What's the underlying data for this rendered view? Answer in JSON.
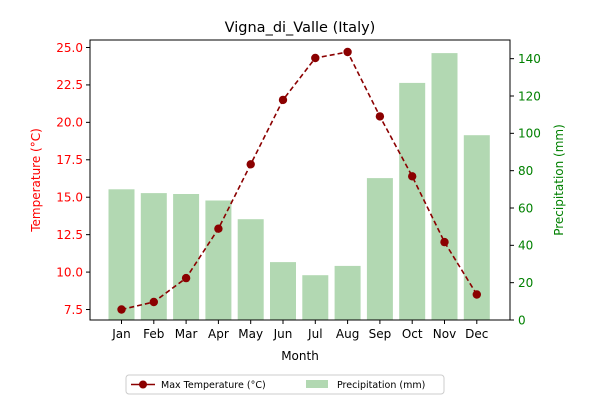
{
  "chart_data": {
    "type": "bar+line",
    "title": "Vigna_di_Valle (Italy)",
    "xlabel": "Month",
    "categories": [
      "Jan",
      "Feb",
      "Mar",
      "Apr",
      "May",
      "Jun",
      "Jul",
      "Aug",
      "Sep",
      "Oct",
      "Nov",
      "Dec"
    ],
    "left_axis": {
      "label": "Temperature (°C)",
      "color": "#ff0000",
      "ylim": [
        6.8,
        25.5
      ],
      "ticks": [
        "7.5",
        "10.0",
        "12.5",
        "15.0",
        "17.5",
        "20.0",
        "22.5",
        "25.0"
      ]
    },
    "right_axis": {
      "label": "Precipitation (mm)",
      "color": "#008000",
      "ylim": [
        0,
        150
      ],
      "ticks": [
        "0",
        "20",
        "40",
        "60",
        "80",
        "100",
        "120",
        "140"
      ]
    },
    "series": [
      {
        "name": "Max Temperature (°C)",
        "kind": "line",
        "axis": "left",
        "color": "#8b0000",
        "line_style": "dashed",
        "marker": "circle",
        "values": [
          7.5,
          8.0,
          9.6,
          12.9,
          17.2,
          21.5,
          24.3,
          24.7,
          20.4,
          16.4,
          12.0,
          8.5
        ]
      },
      {
        "name": "Precipitation (mm)",
        "kind": "bar",
        "axis": "right",
        "color": "#b2d8b2",
        "values": [
          70,
          68,
          67.5,
          64,
          54,
          31,
          24,
          29,
          76,
          127,
          143,
          99
        ]
      }
    ],
    "legend": {
      "position": "bottom-center",
      "items": [
        "Max Temperature (°C)",
        "Precipitation (mm)"
      ]
    },
    "grid": false
  }
}
